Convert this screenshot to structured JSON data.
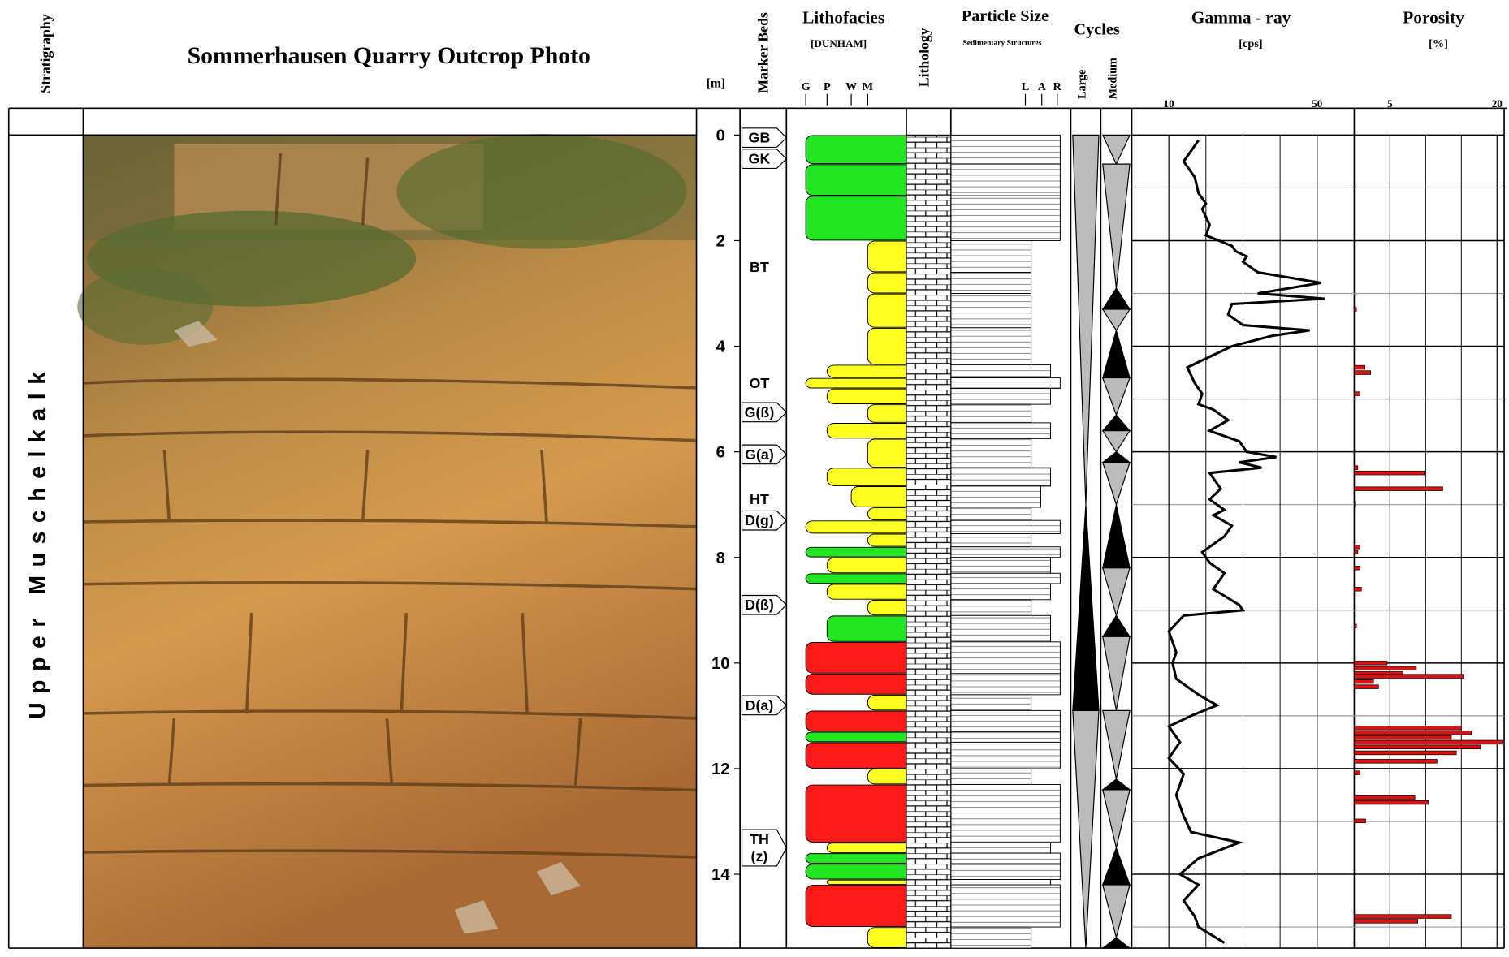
{
  "header": {
    "stratigraphy": "Stratigraphy",
    "title": "Sommerhausen  Quarry    Outcrop  Photo",
    "marker_beds": "Marker Beds",
    "lithofacies": "Lithofacies",
    "dunham": "[DUNHAM]",
    "dunham_classes": [
      "G",
      "P",
      "W",
      "M"
    ],
    "lithology": "Lithology",
    "particle_size": "Particle Size",
    "sed_structures": "Sedimentary Structures",
    "particle_classes": [
      "L",
      "A",
      "R"
    ],
    "cycles": "Cycles",
    "cycle_classes": [
      "Large",
      "Medium"
    ]
  },
  "stratigraphy": {
    "unit": "Upper  Muschelkalk"
  },
  "depth_axis": {
    "unit": "[m]",
    "ylim": [
      0,
      15.4
    ],
    "yticks": [
      0,
      2,
      4,
      6,
      8,
      10,
      12,
      14
    ],
    "minor_yticks": [
      1,
      3,
      5,
      7,
      9,
      11,
      13,
      15
    ]
  },
  "marker_beds": [
    {
      "label": "GB",
      "depth": 0.05,
      "tag": true
    },
    {
      "label": "GK",
      "depth": 0.45,
      "tag": true
    },
    {
      "label": "BT",
      "depth": 2.5,
      "tag": false
    },
    {
      "label": "OT",
      "depth": 4.7,
      "tag": false
    },
    {
      "label": "G(ß)",
      "depth": 5.25,
      "tag": true
    },
    {
      "label": "G(a)",
      "depth": 6.05,
      "tag": true
    },
    {
      "label": "HT",
      "depth": 6.9,
      "tag": false
    },
    {
      "label": "D(g)",
      "depth": 7.3,
      "tag": true
    },
    {
      "label": "D(ß)",
      "depth": 8.9,
      "tag": true
    },
    {
      "label": "D(a)",
      "depth": 10.8,
      "tag": true
    },
    {
      "label": [
        "TH",
        "(z)"
      ],
      "depth": 13.5,
      "tag": true
    }
  ],
  "lithofacies": [
    {
      "top": 0,
      "bottom": 0.55,
      "texture": "G",
      "color": "#22e622"
    },
    {
      "top": 0.55,
      "bottom": 1.15,
      "texture": "G",
      "color": "#22e622"
    },
    {
      "top": 1.15,
      "bottom": 2.0,
      "texture": "G",
      "color": "#22e622"
    },
    {
      "top": 2.0,
      "bottom": 2.6,
      "texture": "M",
      "color": "#ffff22"
    },
    {
      "top": 2.6,
      "bottom": 3.0,
      "texture": "M",
      "color": "#ffff22"
    },
    {
      "top": 3.0,
      "bottom": 3.65,
      "texture": "M",
      "color": "#ffff22"
    },
    {
      "top": 3.65,
      "bottom": 4.35,
      "texture": "M",
      "color": "#ffff22"
    },
    {
      "top": 4.35,
      "bottom": 4.6,
      "texture": "P",
      "color": "#ffff22"
    },
    {
      "top": 4.6,
      "bottom": 4.8,
      "texture": "G",
      "color": "#ffff22"
    },
    {
      "top": 4.8,
      "bottom": 5.1,
      "texture": "P",
      "color": "#ffff22"
    },
    {
      "top": 5.1,
      "bottom": 5.45,
      "texture": "M",
      "color": "#ffff22"
    },
    {
      "top": 5.45,
      "bottom": 5.75,
      "texture": "P",
      "color": "#ffff22"
    },
    {
      "top": 5.75,
      "bottom": 6.3,
      "texture": "M",
      "color": "#ffff22"
    },
    {
      "top": 6.3,
      "bottom": 6.65,
      "texture": "P",
      "color": "#ffff22"
    },
    {
      "top": 6.65,
      "bottom": 7.05,
      "texture": "W",
      "color": "#ffff22"
    },
    {
      "top": 7.05,
      "bottom": 7.3,
      "texture": "M",
      "color": "#ffff22"
    },
    {
      "top": 7.3,
      "bottom": 7.55,
      "texture": "G",
      "color": "#ffff22"
    },
    {
      "top": 7.55,
      "bottom": 7.8,
      "texture": "M",
      "color": "#ffff22"
    },
    {
      "top": 7.8,
      "bottom": 8.0,
      "texture": "G",
      "color": "#22e622"
    },
    {
      "top": 8.0,
      "bottom": 8.3,
      "texture": "P",
      "color": "#ffff22"
    },
    {
      "top": 8.3,
      "bottom": 8.5,
      "texture": "G",
      "color": "#22e622"
    },
    {
      "top": 8.5,
      "bottom": 8.8,
      "texture": "P",
      "color": "#ffff22"
    },
    {
      "top": 8.8,
      "bottom": 9.1,
      "texture": "M",
      "color": "#ffff22"
    },
    {
      "top": 9.1,
      "bottom": 9.6,
      "texture": "P",
      "color": "#22e622"
    },
    {
      "top": 9.6,
      "bottom": 10.2,
      "texture": "G",
      "color": "#ff1a1a"
    },
    {
      "top": 10.2,
      "bottom": 10.6,
      "texture": "G",
      "color": "#ff1a1a"
    },
    {
      "top": 10.6,
      "bottom": 10.9,
      "texture": "M",
      "color": "#ffff22"
    },
    {
      "top": 10.9,
      "bottom": 11.3,
      "texture": "G",
      "color": "#ff1a1a"
    },
    {
      "top": 11.3,
      "bottom": 11.5,
      "texture": "G",
      "color": "#22e622"
    },
    {
      "top": 11.5,
      "bottom": 12.0,
      "texture": "G",
      "color": "#ff1a1a"
    },
    {
      "top": 12.0,
      "bottom": 12.3,
      "texture": "M",
      "color": "#ffff22"
    },
    {
      "top": 12.3,
      "bottom": 13.4,
      "texture": "G",
      "color": "#ff1a1a"
    },
    {
      "top": 13.4,
      "bottom": 13.6,
      "texture": "P",
      "color": "#ffff22"
    },
    {
      "top": 13.6,
      "bottom": 13.8,
      "texture": "G",
      "color": "#22e622"
    },
    {
      "top": 13.8,
      "bottom": 14.1,
      "texture": "G",
      "color": "#22e622"
    },
    {
      "top": 14.1,
      "bottom": 14.2,
      "texture": "P",
      "color": "#ffff22"
    },
    {
      "top": 14.2,
      "bottom": 15.0,
      "texture": "G",
      "color": "#ff1a1a"
    },
    {
      "top": 15.0,
      "bottom": 15.4,
      "texture": "M",
      "color": "#ffff22"
    }
  ],
  "cycles": {
    "large": [
      {
        "top": 0,
        "bottom": 7.0,
        "shape": "down",
        "fill": "#bbbbbb"
      },
      {
        "top": 7.0,
        "bottom": 10.9,
        "shape": "up",
        "fill": "#000000"
      },
      {
        "top": 10.9,
        "bottom": 15.4,
        "shape": "down",
        "fill": "#bbbbbb"
      }
    ],
    "medium": [
      {
        "top": 0,
        "bottom": 0.55,
        "shape": "down",
        "fill": "#bbbbbb"
      },
      {
        "top": 0.55,
        "bottom": 2.9,
        "shape": "down",
        "fill": "#bbbbbb"
      },
      {
        "top": 2.9,
        "bottom": 3.3,
        "shape": "up",
        "fill": "#000000"
      },
      {
        "top": 3.3,
        "bottom": 3.7,
        "shape": "down",
        "fill": "#bbbbbb"
      },
      {
        "top": 3.7,
        "bottom": 4.6,
        "shape": "up",
        "fill": "#000000"
      },
      {
        "top": 4.6,
        "bottom": 5.3,
        "shape": "down",
        "fill": "#bbbbbb"
      },
      {
        "top": 5.3,
        "bottom": 5.6,
        "shape": "up",
        "fill": "#000000"
      },
      {
        "top": 5.6,
        "bottom": 6.0,
        "shape": "down",
        "fill": "#bbbbbb"
      },
      {
        "top": 6.0,
        "bottom": 6.2,
        "shape": "up",
        "fill": "#000000"
      },
      {
        "top": 6.2,
        "bottom": 7.0,
        "shape": "down",
        "fill": "#bbbbbb"
      },
      {
        "top": 7.0,
        "bottom": 8.2,
        "shape": "up",
        "fill": "#000000"
      },
      {
        "top": 8.2,
        "bottom": 9.1,
        "shape": "down",
        "fill": "#bbbbbb"
      },
      {
        "top": 9.1,
        "bottom": 9.5,
        "shape": "up",
        "fill": "#000000"
      },
      {
        "top": 9.5,
        "bottom": 10.9,
        "shape": "down",
        "fill": "#bbbbbb"
      },
      {
        "top": 10.9,
        "bottom": 12.2,
        "shape": "down",
        "fill": "#bbbbbb"
      },
      {
        "top": 12.2,
        "bottom": 12.4,
        "shape": "up",
        "fill": "#000000"
      },
      {
        "top": 12.4,
        "bottom": 13.5,
        "shape": "down",
        "fill": "#bbbbbb"
      },
      {
        "top": 13.5,
        "bottom": 14.2,
        "shape": "up",
        "fill": "#000000"
      },
      {
        "top": 14.2,
        "bottom": 15.2,
        "shape": "down",
        "fill": "#bbbbbb"
      },
      {
        "top": 15.2,
        "bottom": 15.4,
        "shape": "up",
        "fill": "#000000"
      }
    ]
  },
  "chart_data": [
    {
      "type": "line",
      "title": "Gamma - ray",
      "unit_label": "[cps]",
      "xlim": [
        0,
        60
      ],
      "xticks": [
        10,
        50
      ],
      "minor_xticks": [
        20,
        30,
        40
      ],
      "color": "#000000",
      "depth": [
        0.1,
        0.3,
        0.5,
        0.8,
        1.1,
        1.3,
        1.4,
        1.7,
        1.9,
        2.1,
        2.2,
        2.3,
        2.4,
        2.6,
        2.8,
        3.0,
        3.1,
        3.2,
        3.4,
        3.6,
        3.7,
        3.8,
        4.0,
        4.2,
        4.4,
        4.7,
        4.9,
        5.1,
        5.2,
        5.4,
        5.6,
        5.8,
        6.0,
        6.1,
        6.2,
        6.3,
        6.4,
        6.7,
        6.9,
        7.1,
        7.2,
        7.4,
        7.6,
        7.9,
        8.1,
        8.3,
        8.6,
        8.9,
        9.0,
        9.1,
        9.4,
        9.8,
        10.0,
        10.3,
        10.6,
        10.8,
        11.0,
        11.2,
        11.5,
        11.8,
        12.1,
        12.5,
        12.9,
        13.2,
        13.4,
        13.7,
        14.0,
        14.2,
        14.5,
        14.8,
        15.0,
        15.3
      ],
      "values": [
        18,
        16,
        14,
        17,
        18,
        20,
        19,
        21,
        20,
        27,
        28,
        31,
        30,
        34,
        51,
        34,
        52,
        27,
        26,
        30,
        48,
        38,
        27,
        21,
        15,
        17,
        19,
        18,
        22,
        26,
        21,
        29,
        31,
        39,
        29,
        35,
        21,
        24,
        21,
        25,
        22,
        27,
        25,
        19,
        21,
        25,
        22,
        29,
        30,
        14,
        10,
        12,
        11,
        12,
        18,
        23,
        16,
        10,
        13,
        10,
        14,
        12,
        14,
        16,
        29,
        18,
        13,
        18,
        14,
        17,
        18,
        25
      ]
    },
    {
      "type": "bar",
      "title": "Porosity",
      "unit_label": "[%]",
      "xlim": [
        0,
        21
      ],
      "xticks": [
        5,
        20
      ],
      "minor_xticks": [
        10,
        15
      ],
      "color": "#dd1111",
      "depth": [
        3.3,
        4.4,
        4.5,
        4.9,
        6.3,
        6.4,
        6.7,
        7.0,
        7.8,
        7.9,
        8.2,
        8.6,
        9.3,
        10.0,
        10.1,
        10.2,
        10.25,
        10.35,
        10.45,
        11.23,
        11.32,
        11.41,
        11.5,
        11.59,
        11.7,
        11.86,
        12.08,
        12.55,
        12.64,
        12.99,
        14.8,
        14.89
      ],
      "values": [
        0.3,
        1.5,
        2.3,
        0.8,
        0.5,
        9.8,
        12.4,
        0.1,
        0.8,
        0.5,
        0.8,
        1.0,
        0.3,
        4.6,
        8.7,
        6.8,
        15.3,
        2.7,
        3.4,
        15.0,
        16.4,
        13.6,
        20.7,
        17.7,
        14.3,
        11.6,
        0.8,
        8.5,
        10.4,
        1.6,
        13.6,
        8.9
      ]
    }
  ]
}
